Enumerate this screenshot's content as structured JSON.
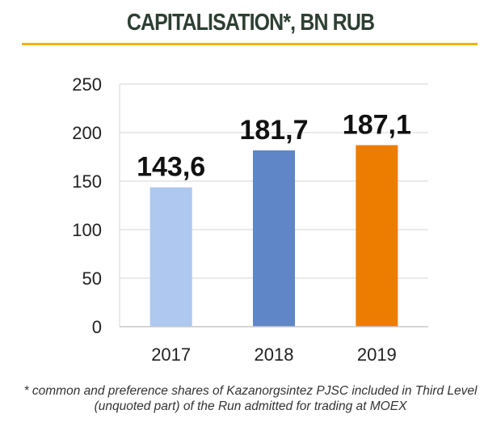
{
  "chart_data": {
    "type": "bar",
    "title": "CAPITALISATION*, BN RUB",
    "categories": [
      "2017",
      "2018",
      "2019"
    ],
    "values": [
      143.6,
      181.7,
      187.1
    ],
    "data_labels": [
      "143,6",
      "181,7",
      "187,1"
    ],
    "colors": [
      "#aec8ef",
      "#5f87c7",
      "#ed7d00"
    ],
    "ylim": [
      0,
      250
    ],
    "yticks": [
      0,
      50,
      100,
      150,
      200,
      250
    ],
    "grid": true,
    "legend": "none",
    "xlabel": "",
    "ylabel": ""
  },
  "footnote": "* common and preference shares of Kazanorgsintez PJSC included in Third Level (unquoted part) of the Run admitted for trading at MOEX"
}
